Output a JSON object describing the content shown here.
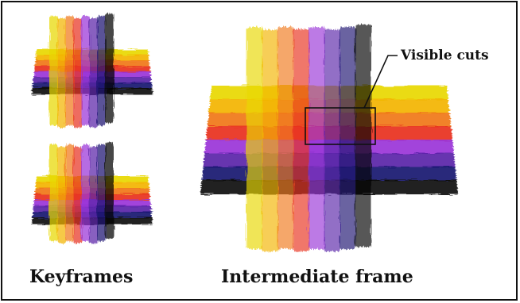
{
  "captions": {
    "keyframes": "Keyframes",
    "intermediate": "Intermediate frame"
  },
  "callout": {
    "label": "Visible cuts"
  },
  "palette": {
    "stripes": [
      "#e8d800",
      "#f3b400",
      "#f07818",
      "#e83020",
      "#9a34d8",
      "#5a22a8",
      "#1a1670",
      "#080808"
    ]
  }
}
